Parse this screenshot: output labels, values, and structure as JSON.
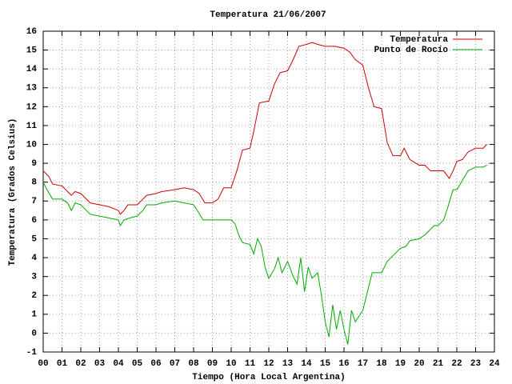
{
  "chart_data": {
    "type": "line",
    "title": "Temperatura 21/06/2007",
    "x_label": "Tiempo (Hora Local Argentina)",
    "y_label": "Temperatura (Grados Celsius)",
    "xlim": [
      0,
      24
    ],
    "xticks": [
      {
        "value": 0,
        "label": "00"
      },
      {
        "value": 1,
        "label": "01"
      },
      {
        "value": 2,
        "label": "02"
      },
      {
        "value": 3,
        "label": "03"
      },
      {
        "value": 4,
        "label": "04"
      },
      {
        "value": 5,
        "label": "05"
      },
      {
        "value": 6,
        "label": "06"
      },
      {
        "value": 7,
        "label": "07"
      },
      {
        "value": 8,
        "label": "08"
      },
      {
        "value": 9,
        "label": "09"
      },
      {
        "value": 10,
        "label": "10"
      },
      {
        "value": 11,
        "label": "11"
      },
      {
        "value": 12,
        "label": "12"
      },
      {
        "value": 13,
        "label": "13"
      },
      {
        "value": 14,
        "label": "14"
      },
      {
        "value": 15,
        "label": "15"
      },
      {
        "value": 16,
        "label": "16"
      },
      {
        "value": 17,
        "label": "17"
      },
      {
        "value": 18,
        "label": "18"
      },
      {
        "value": 19,
        "label": "19"
      },
      {
        "value": 20,
        "label": "20"
      },
      {
        "value": 21,
        "label": "21"
      },
      {
        "value": 22,
        "label": "22"
      },
      {
        "value": 23,
        "label": "23"
      },
      {
        "value": 24,
        "label": "24"
      }
    ],
    "ylim": [
      -1,
      16
    ],
    "yticks": [
      -1,
      0,
      1,
      2,
      3,
      4,
      5,
      6,
      7,
      8,
      9,
      10,
      11,
      12,
      13,
      14,
      15,
      16
    ],
    "grid": true,
    "legend": "top-right",
    "series": [
      {
        "name": "Temperatura",
        "color": "#cc0000",
        "x": [
          0,
          0.3,
          0.5,
          1.0,
          1.3,
          1.5,
          1.7,
          2.0,
          2.5,
          3.0,
          3.5,
          4.0,
          4.1,
          4.3,
          4.5,
          5.0,
          5.3,
          5.5,
          6.0,
          6.3,
          7.0,
          7.5,
          8.0,
          8.3,
          8.6,
          9.0,
          9.3,
          9.6,
          10.0,
          10.3,
          10.6,
          11.0,
          11.2,
          11.5,
          12.0,
          12.3,
          12.6,
          13.0,
          13.3,
          13.6,
          14.0,
          14.3,
          14.6,
          15.0,
          15.5,
          16.0,
          16.3,
          16.6,
          17.0,
          17.3,
          17.6,
          18.0,
          18.3,
          18.6,
          19.0,
          19.2,
          19.5,
          20.0,
          20.3,
          20.6,
          21.0,
          21.3,
          21.6,
          21.8,
          22.0,
          22.3,
          22.6,
          23.0,
          23.4,
          23.6
        ],
        "values": [
          8.6,
          8.3,
          7.9,
          7.8,
          7.5,
          7.3,
          7.5,
          7.4,
          6.9,
          6.8,
          6.7,
          6.5,
          6.3,
          6.5,
          6.8,
          6.8,
          7.1,
          7.3,
          7.4,
          7.5,
          7.6,
          7.7,
          7.6,
          7.4,
          6.9,
          6.9,
          7.1,
          7.7,
          7.7,
          8.6,
          9.7,
          9.8,
          10.7,
          12.2,
          12.3,
          13.2,
          13.8,
          13.9,
          14.5,
          15.2,
          15.3,
          15.4,
          15.3,
          15.2,
          15.2,
          15.1,
          14.9,
          14.5,
          14.2,
          13.0,
          12.0,
          11.9,
          10.1,
          9.4,
          9.4,
          9.8,
          9.2,
          8.9,
          8.9,
          8.6,
          8.6,
          8.6,
          8.2,
          8.6,
          9.1,
          9.2,
          9.6,
          9.8,
          9.8,
          10.0
        ]
      },
      {
        "name": "Punto de Rocío",
        "color": "#00aa00",
        "x": [
          0,
          0.2,
          0.5,
          1.0,
          1.3,
          1.5,
          1.7,
          2.0,
          2.5,
          3.0,
          3.5,
          4.0,
          4.1,
          4.3,
          4.6,
          5.0,
          5.3,
          5.5,
          6.0,
          6.3,
          7.0,
          7.5,
          8.0,
          8.2,
          8.5,
          9.0,
          9.5,
          10.0,
          10.2,
          10.4,
          10.6,
          11.0,
          11.2,
          11.4,
          11.6,
          11.8,
          12.0,
          12.3,
          12.5,
          12.7,
          13.0,
          13.3,
          13.5,
          13.7,
          13.9,
          14.1,
          14.3,
          14.6,
          14.8,
          15.0,
          15.2,
          15.4,
          15.6,
          15.8,
          16.0,
          16.2,
          16.4,
          16.6,
          16.8,
          17.0,
          17.2,
          17.5,
          18.0,
          18.3,
          18.6,
          19.0,
          19.3,
          19.5,
          20.0,
          20.3,
          20.5,
          20.8,
          21.0,
          21.3,
          21.5,
          21.8,
          22.0,
          22.3,
          22.6,
          23.0,
          23.4,
          23.6
        ],
        "values": [
          8.0,
          7.6,
          7.1,
          7.1,
          6.9,
          6.5,
          6.9,
          6.8,
          6.3,
          6.2,
          6.1,
          6.0,
          5.7,
          6.0,
          6.1,
          6.2,
          6.5,
          6.8,
          6.8,
          6.9,
          7.0,
          6.9,
          6.8,
          6.5,
          6.0,
          6.0,
          6.0,
          6.0,
          5.8,
          5.2,
          4.8,
          4.7,
          4.2,
          5.0,
          4.6,
          3.5,
          2.9,
          3.4,
          4.0,
          3.2,
          3.8,
          3.0,
          2.6,
          4.0,
          2.2,
          3.5,
          2.9,
          3.2,
          2.0,
          0.6,
          -0.2,
          1.5,
          0.2,
          1.2,
          0.2,
          -0.6,
          1.2,
          0.6,
          0.9,
          1.2,
          2.0,
          3.2,
          3.2,
          3.8,
          4.1,
          4.5,
          4.6,
          4.9,
          5.0,
          5.2,
          5.4,
          5.7,
          5.7,
          6.0,
          6.6,
          7.6,
          7.6,
          8.1,
          8.6,
          8.8,
          8.8,
          8.9
        ]
      }
    ]
  }
}
